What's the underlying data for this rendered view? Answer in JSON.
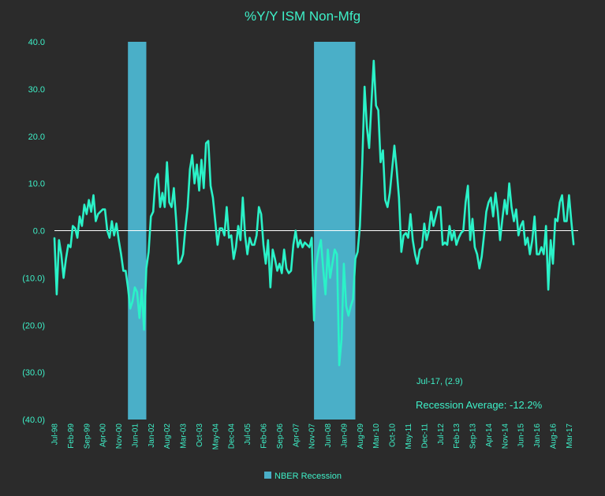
{
  "chart_data": {
    "type": "line",
    "title": "%Y/Y ISM Non-Mfg",
    "xlabel": "",
    "ylabel": "",
    "ylim": [
      -40,
      40
    ],
    "yticks": [
      40,
      30,
      20,
      10,
      0,
      -10,
      -20,
      -30,
      -40
    ],
    "ytick_labels": [
      "40.0",
      "30.0",
      "20.0",
      "10.0",
      "0.0",
      "(10.0)",
      "(20.0)",
      "(30.0)",
      "(40.0)"
    ],
    "x_start": "1998-07",
    "x_end": "2017-07",
    "xtick_labels": [
      "Jul-98",
      "Feb-99",
      "Sep-99",
      "Apr-00",
      "Nov-00",
      "Jun-01",
      "Jan-02",
      "Aug-02",
      "Mar-03",
      "Oct-03",
      "May-04",
      "Dec-04",
      "Jul-05",
      "Feb-06",
      "Sep-06",
      "Apr-07",
      "Nov-07",
      "Jun-08",
      "Jan-09",
      "Aug-09",
      "Mar-10",
      "Oct-10",
      "May-11",
      "Dec-11",
      "Jul-12",
      "Feb-13",
      "Sep-13",
      "Apr-14",
      "Nov-14",
      "Jun-15",
      "Jan-16",
      "Aug-16",
      "Mar-17"
    ],
    "xtick_dates": [
      "1998-07",
      "1999-02",
      "1999-09",
      "2000-04",
      "2000-11",
      "2001-06",
      "2002-01",
      "2002-08",
      "2003-03",
      "2003-10",
      "2004-05",
      "2004-12",
      "2005-07",
      "2006-02",
      "2006-09",
      "2007-04",
      "2007-11",
      "2008-06",
      "2009-01",
      "2009-08",
      "2010-03",
      "2010-10",
      "2011-05",
      "2011-12",
      "2012-07",
      "2013-02",
      "2013-09",
      "2014-04",
      "2014-11",
      "2015-06",
      "2016-01",
      "2016-08",
      "2017-03"
    ],
    "series": [
      {
        "name": "",
        "color": "#2af2c8",
        "points": [
          [
            "1998-07",
            -1.5
          ],
          [
            "1998-08",
            -13.5
          ],
          [
            "1998-09",
            -2
          ],
          [
            "1998-10",
            -5
          ],
          [
            "1998-11",
            -10
          ],
          [
            "1998-12",
            -6
          ],
          [
            "1999-01",
            -3
          ],
          [
            "1999-02",
            -3.5
          ],
          [
            "1999-03",
            1
          ],
          [
            "1999-04",
            0.5
          ],
          [
            "1999-05",
            -1.5
          ],
          [
            "1999-06",
            3
          ],
          [
            "1999-07",
            1
          ],
          [
            "1999-08",
            5.5
          ],
          [
            "1999-09",
            3.5
          ],
          [
            "1999-10",
            6.5
          ],
          [
            "1999-11",
            4
          ],
          [
            "1999-12",
            7.5
          ],
          [
            "2000-01",
            2
          ],
          [
            "2000-02",
            3.5
          ],
          [
            "2000-03",
            4
          ],
          [
            "2000-04",
            4.5
          ],
          [
            "2000-05",
            4.5
          ],
          [
            "2000-06",
            0
          ],
          [
            "2000-07",
            -1.5
          ],
          [
            "2000-08",
            2
          ],
          [
            "2000-09",
            -1
          ],
          [
            "2000-10",
            1.5
          ],
          [
            "2000-11",
            -2
          ],
          [
            "2000-12",
            -5
          ],
          [
            "2001-01",
            -8.5
          ],
          [
            "2001-02",
            -8.5
          ],
          [
            "2001-03",
            -12
          ],
          [
            "2001-04",
            -16.5
          ],
          [
            "2001-05",
            -15
          ],
          [
            "2001-06",
            -12
          ],
          [
            "2001-07",
            -13
          ],
          [
            "2001-08",
            -18.5
          ],
          [
            "2001-09",
            -12.5
          ],
          [
            "2001-10",
            -21
          ],
          [
            "2001-11",
            -8
          ],
          [
            "2001-12",
            -4.5
          ],
          [
            "2002-01",
            3
          ],
          [
            "2002-02",
            4
          ],
          [
            "2002-03",
            11
          ],
          [
            "2002-04",
            12
          ],
          [
            "2002-05",
            5
          ],
          [
            "2002-06",
            8
          ],
          [
            "2002-07",
            5
          ],
          [
            "2002-08",
            14.5
          ],
          [
            "2002-09",
            6
          ],
          [
            "2002-10",
            5
          ],
          [
            "2002-11",
            9
          ],
          [
            "2002-12",
            2
          ],
          [
            "2003-01",
            -7
          ],
          [
            "2003-02",
            -6.5
          ],
          [
            "2003-03",
            -5
          ],
          [
            "2003-04",
            0.5
          ],
          [
            "2003-05",
            5
          ],
          [
            "2003-06",
            13
          ],
          [
            "2003-07",
            16
          ],
          [
            "2003-08",
            10
          ],
          [
            "2003-09",
            14
          ],
          [
            "2003-10",
            8.5
          ],
          [
            "2003-11",
            15
          ],
          [
            "2003-12",
            9
          ],
          [
            "2004-01",
            18.5
          ],
          [
            "2004-02",
            19
          ],
          [
            "2004-03",
            9.5
          ],
          [
            "2004-04",
            7
          ],
          [
            "2004-05",
            2
          ],
          [
            "2004-06",
            -3
          ],
          [
            "2004-07",
            0.5
          ],
          [
            "2004-08",
            0.5
          ],
          [
            "2004-09",
            -1
          ],
          [
            "2004-10",
            5
          ],
          [
            "2004-11",
            -1.5
          ],
          [
            "2004-12",
            -1
          ],
          [
            "2005-01",
            -6
          ],
          [
            "2005-02",
            -3.5
          ],
          [
            "2005-03",
            1
          ],
          [
            "2005-04",
            -2
          ],
          [
            "2005-05",
            7
          ],
          [
            "2005-06",
            -1
          ],
          [
            "2005-07",
            -5
          ],
          [
            "2005-08",
            -1.5
          ],
          [
            "2005-09",
            -3
          ],
          [
            "2005-10",
            -3
          ],
          [
            "2005-11",
            -1
          ],
          [
            "2005-12",
            5
          ],
          [
            "2006-01",
            3.5
          ],
          [
            "2006-02",
            -3
          ],
          [
            "2006-03",
            -7
          ],
          [
            "2006-04",
            -2
          ],
          [
            "2006-05",
            -12
          ],
          [
            "2006-06",
            -4
          ],
          [
            "2006-07",
            -6
          ],
          [
            "2006-08",
            -8.5
          ],
          [
            "2006-09",
            -7
          ],
          [
            "2006-10",
            -9
          ],
          [
            "2006-11",
            -4
          ],
          [
            "2006-12",
            -8
          ],
          [
            "2007-01",
            -9
          ],
          [
            "2007-02",
            -8.5
          ],
          [
            "2007-03",
            -3
          ],
          [
            "2007-04",
            0
          ],
          [
            "2007-05",
            -3.5
          ],
          [
            "2007-06",
            -2
          ],
          [
            "2007-07",
            -3.5
          ],
          [
            "2007-08",
            -2.5
          ],
          [
            "2007-09",
            -3
          ],
          [
            "2007-10",
            -3.5
          ],
          [
            "2007-11",
            -1.5
          ],
          [
            "2007-12",
            -19
          ],
          [
            "2008-01",
            -7
          ],
          [
            "2008-02",
            -4
          ],
          [
            "2008-03",
            -2
          ],
          [
            "2008-04",
            -8
          ],
          [
            "2008-05",
            -13.5
          ],
          [
            "2008-06",
            -4
          ],
          [
            "2008-07",
            -10
          ],
          [
            "2008-08",
            -7
          ],
          [
            "2008-09",
            -4
          ],
          [
            "2008-10",
            -5
          ],
          [
            "2008-11",
            -28.5
          ],
          [
            "2008-12",
            -23
          ],
          [
            "2009-01",
            -7
          ],
          [
            "2009-02",
            -16
          ],
          [
            "2009-03",
            -18
          ],
          [
            "2009-04",
            -16
          ],
          [
            "2009-05",
            -14.5
          ],
          [
            "2009-06",
            -6
          ],
          [
            "2009-07",
            -4.5
          ],
          [
            "2009-08",
            1
          ],
          [
            "2009-09",
            14
          ],
          [
            "2009-10",
            30.5
          ],
          [
            "2009-11",
            22
          ],
          [
            "2009-12",
            17.5
          ],
          [
            "2010-01",
            27
          ],
          [
            "2010-02",
            36
          ],
          [
            "2010-03",
            26.5
          ],
          [
            "2010-04",
            25.5
          ],
          [
            "2010-05",
            14.5
          ],
          [
            "2010-06",
            17
          ],
          [
            "2010-07",
            6.5
          ],
          [
            "2010-08",
            5
          ],
          [
            "2010-09",
            8
          ],
          [
            "2010-10",
            13
          ],
          [
            "2010-11",
            18
          ],
          [
            "2010-12",
            13
          ],
          [
            "2011-01",
            7
          ],
          [
            "2011-02",
            -4.5
          ],
          [
            "2011-03",
            -1
          ],
          [
            "2011-04",
            -0.5
          ],
          [
            "2011-05",
            -1.5
          ],
          [
            "2011-06",
            3.5
          ],
          [
            "2011-07",
            -2
          ],
          [
            "2011-08",
            -5
          ],
          [
            "2011-09",
            -7
          ],
          [
            "2011-10",
            -4
          ],
          [
            "2011-11",
            -3.5
          ],
          [
            "2011-12",
            1.5
          ],
          [
            "2012-01",
            -2
          ],
          [
            "2012-02",
            0
          ],
          [
            "2012-03",
            4
          ],
          [
            "2012-04",
            1
          ],
          [
            "2012-05",
            3
          ],
          [
            "2012-06",
            5
          ],
          [
            "2012-07",
            5
          ],
          [
            "2012-08",
            -3
          ],
          [
            "2012-09",
            -2.5
          ],
          [
            "2012-10",
            -3
          ],
          [
            "2012-11",
            1
          ],
          [
            "2012-12",
            -2
          ],
          [
            "2013-01",
            0
          ],
          [
            "2013-02",
            -3
          ],
          [
            "2013-03",
            -1.5
          ],
          [
            "2013-04",
            -0.5
          ],
          [
            "2013-05",
            0
          ],
          [
            "2013-06",
            6
          ],
          [
            "2013-07",
            9.5
          ],
          [
            "2013-08",
            -2
          ],
          [
            "2013-09",
            2.5
          ],
          [
            "2013-10",
            -3.5
          ],
          [
            "2013-11",
            -5
          ],
          [
            "2013-12",
            -8
          ],
          [
            "2014-01",
            -5.5
          ],
          [
            "2014-02",
            -1
          ],
          [
            "2014-03",
            4
          ],
          [
            "2014-04",
            6
          ],
          [
            "2014-05",
            7
          ],
          [
            "2014-06",
            3
          ],
          [
            "2014-07",
            8
          ],
          [
            "2014-08",
            4
          ],
          [
            "2014-09",
            -2
          ],
          [
            "2014-10",
            2.5
          ],
          [
            "2014-11",
            6.5
          ],
          [
            "2014-12",
            3.5
          ],
          [
            "2015-01",
            10
          ],
          [
            "2015-02",
            5
          ],
          [
            "2015-03",
            2
          ],
          [
            "2015-04",
            4.5
          ],
          [
            "2015-05",
            -1
          ],
          [
            "2015-06",
            1
          ],
          [
            "2015-07",
            2
          ],
          [
            "2015-08",
            -3
          ],
          [
            "2015-09",
            -1.5
          ],
          [
            "2015-10",
            -5
          ],
          [
            "2015-11",
            -2
          ],
          [
            "2015-12",
            3
          ],
          [
            "2016-01",
            -5
          ],
          [
            "2016-02",
            -5
          ],
          [
            "2016-03",
            -3.5
          ],
          [
            "2016-04",
            -5
          ],
          [
            "2016-05",
            1
          ],
          [
            "2016-06",
            -12.5
          ],
          [
            "2016-07",
            -2
          ],
          [
            "2016-08",
            -7
          ],
          [
            "2016-09",
            2.5
          ],
          [
            "2016-10",
            2
          ],
          [
            "2016-11",
            6
          ],
          [
            "2016-12",
            7.5
          ],
          [
            "2017-01",
            2
          ],
          [
            "2017-02",
            2
          ],
          [
            "2017-03",
            7.5
          ],
          [
            "2017-04",
            2
          ],
          [
            "2017-05",
            -3
          ]
        ]
      }
    ],
    "recessions": [
      {
        "start": "2001-03",
        "end": "2001-11"
      },
      {
        "start": "2007-12",
        "end": "2009-06"
      }
    ],
    "recession_color": "#4aafc8",
    "zero_line": true,
    "grid": false,
    "legend": {
      "position": "bottom-center",
      "label": "NBER Recession"
    },
    "annotations": [
      "Jul-17, (2.9)",
      "Recession Average:  -12.2%"
    ]
  }
}
